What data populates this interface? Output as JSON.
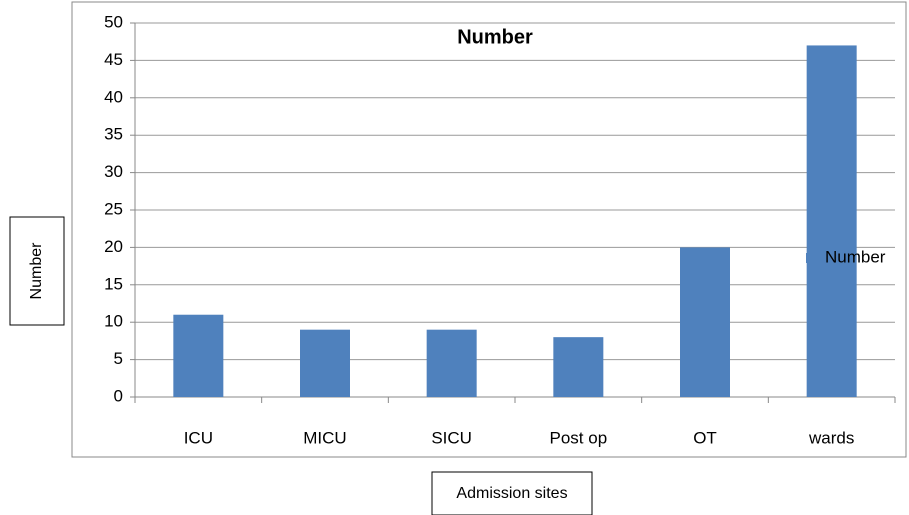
{
  "chart_data": {
    "type": "bar",
    "title": "Number",
    "categories": [
      "ICU",
      "MICU",
      "SICU",
      "Post op",
      "OT",
      "wards"
    ],
    "series": [
      {
        "name": "Number",
        "color": "#4f81bd",
        "values": [
          11,
          9,
          9,
          8,
          20,
          47
        ]
      }
    ],
    "ylim": [
      0,
      50
    ],
    "yticks": [
      0,
      5,
      10,
      15,
      20,
      25,
      30,
      35,
      40,
      45,
      50
    ],
    "grid": true,
    "legend": "right",
    "x_label": "Admission sites",
    "y_label": "Number"
  }
}
